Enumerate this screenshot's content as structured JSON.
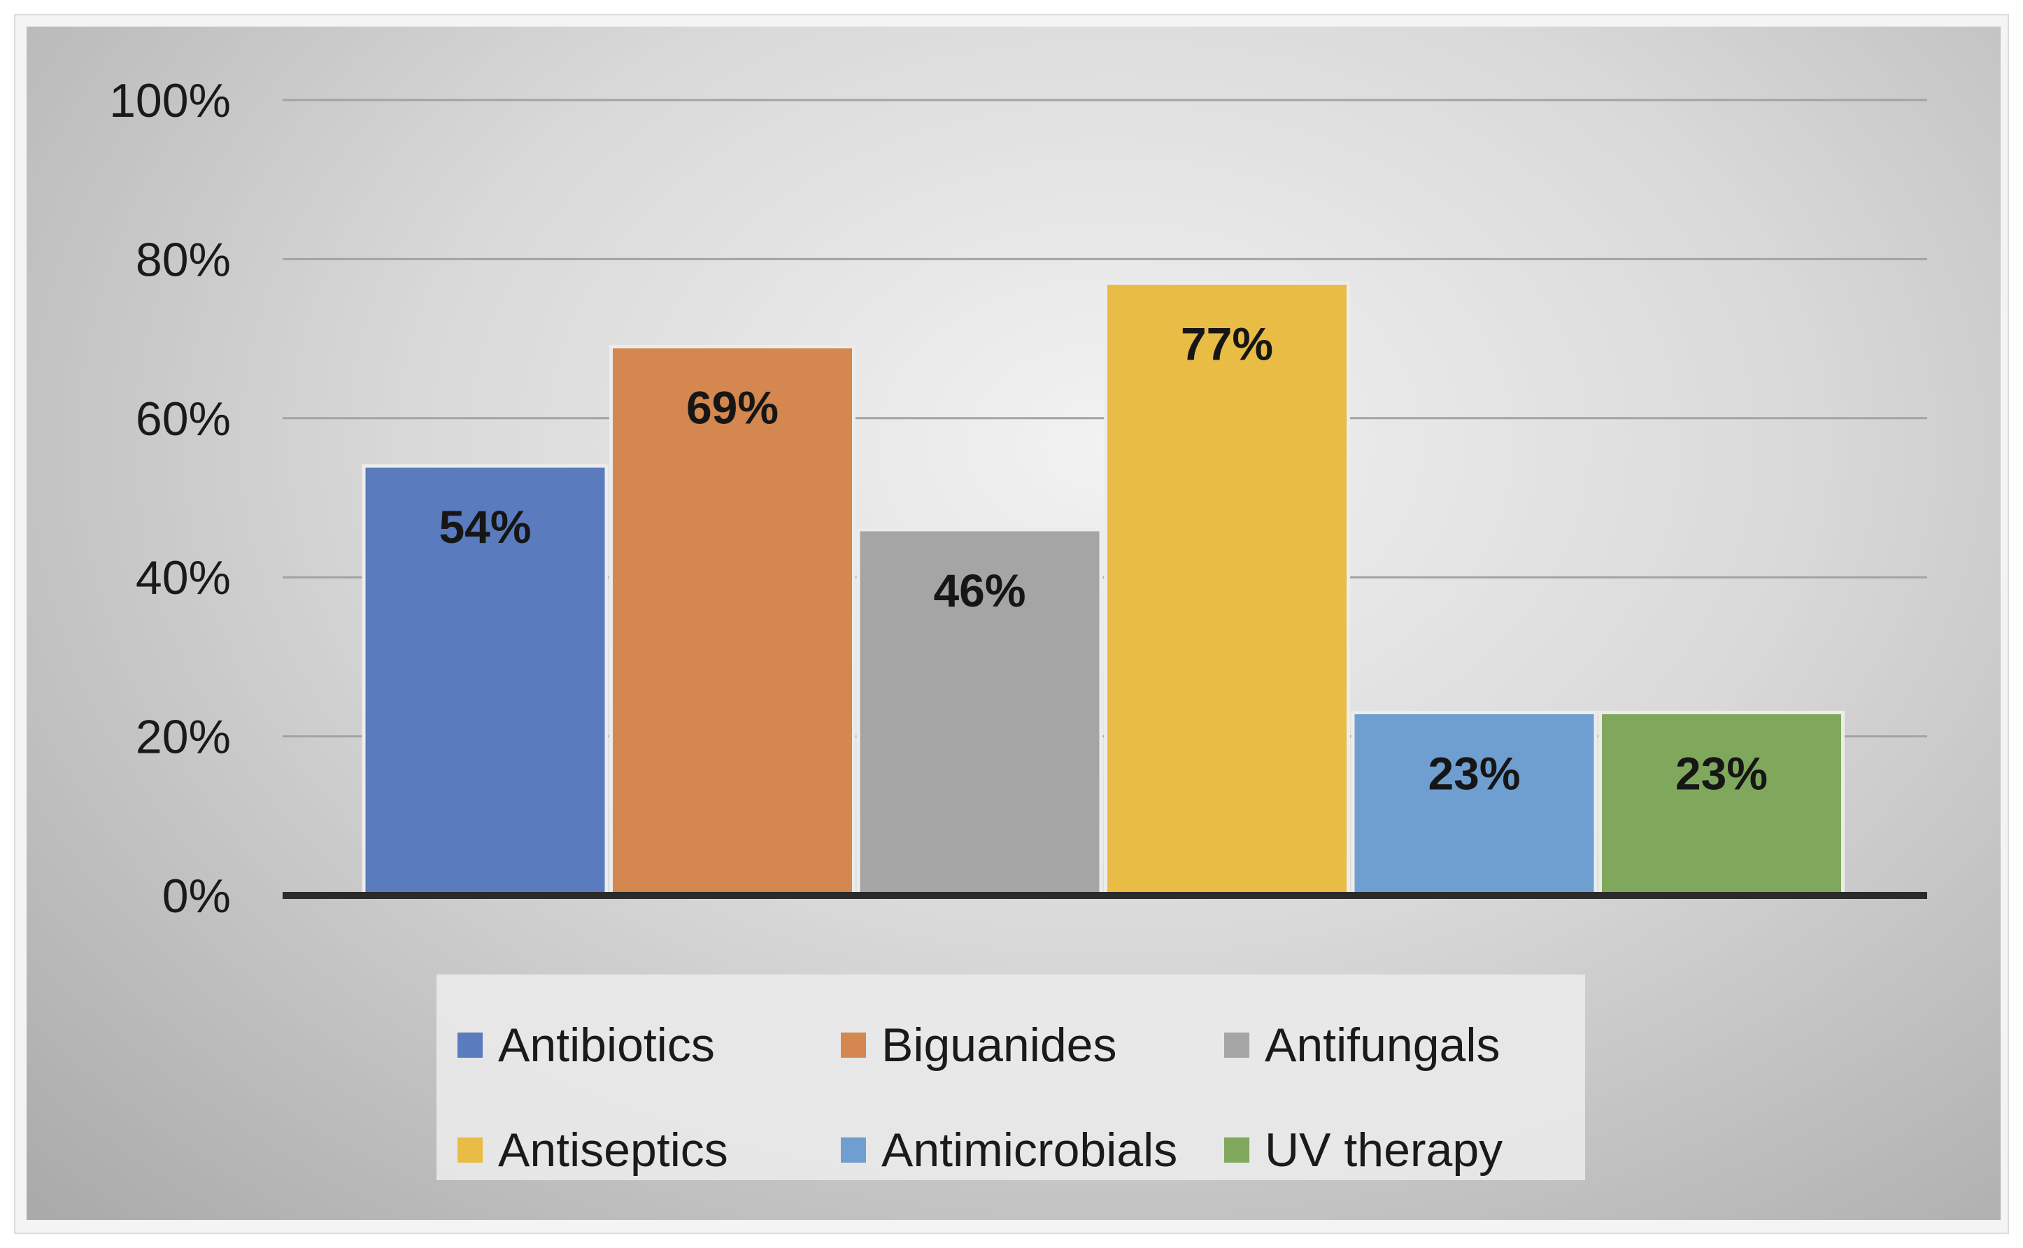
{
  "chart_data": {
    "type": "bar",
    "categories": [
      "Antibiotics",
      "Biguanides",
      "Antifungals",
      "Antiseptics",
      "Antimicrobials",
      "UV therapy"
    ],
    "values": [
      54,
      69,
      46,
      77,
      23,
      23
    ],
    "data_labels": [
      "54%",
      "69%",
      "46%",
      "77%",
      "23%",
      "23%"
    ],
    "colors": [
      "#5a7bbd",
      "#d4874f",
      "#a5a5a5",
      "#e8bc45",
      "#6f9fd0",
      "#7fa85c"
    ],
    "yticks": [
      0,
      20,
      40,
      60,
      80,
      100
    ],
    "ytick_labels": [
      "0%",
      "20%",
      "40%",
      "60%",
      "80%",
      "100%"
    ],
    "ylim": [
      0,
      100
    ],
    "grid": true,
    "legend_position": "bottom",
    "title": "",
    "xlabel": "",
    "ylabel": ""
  },
  "legend": {
    "items": [
      {
        "label": "Antibiotics",
        "color": "#5a7bbd"
      },
      {
        "label": "Biguanides",
        "color": "#d4874f"
      },
      {
        "label": "Antifungals",
        "color": "#a5a5a5"
      },
      {
        "label": "Antiseptics",
        "color": "#e8bc45"
      },
      {
        "label": "Antimicrobials",
        "color": "#6f9fd0"
      },
      {
        "label": "UV therapy",
        "color": "#7fa85c"
      }
    ]
  }
}
